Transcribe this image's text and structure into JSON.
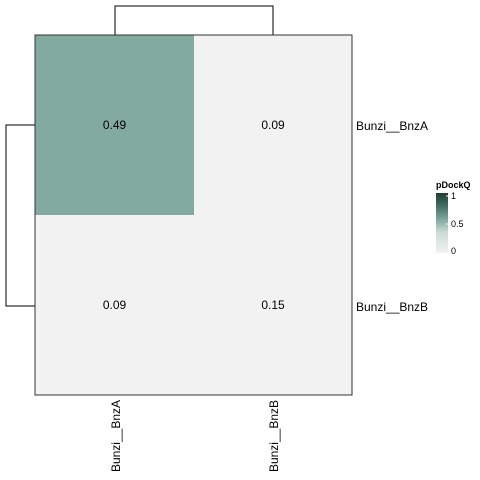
{
  "chart_data": {
    "type": "heatmap",
    "rows": [
      "Bunzi__BnzA",
      "Bunzi__BnzB"
    ],
    "columns": [
      "Bunzi__BnzA",
      "Bunzi__BnzB"
    ],
    "values": [
      [
        0.49,
        0.09
      ],
      [
        0.09,
        0.15
      ]
    ],
    "value_labels": [
      [
        "0.49",
        "0.09"
      ],
      [
        "0.09",
        "0.15"
      ]
    ],
    "row_dendrogram": true,
    "column_dendrogram": true,
    "legend": {
      "title": "pDockQ",
      "ticks": [
        {
          "value": 1,
          "label": "1"
        },
        {
          "value": 0.5,
          "label": "0.5"
        },
        {
          "value": 0,
          "label": "0"
        }
      ],
      "range": [
        0,
        1
      ],
      "placement": "right"
    },
    "color_scale": {
      "low": "#f2f2f2",
      "high": "#1f3d33",
      "highlight_cell": "#82aa9f"
    }
  }
}
